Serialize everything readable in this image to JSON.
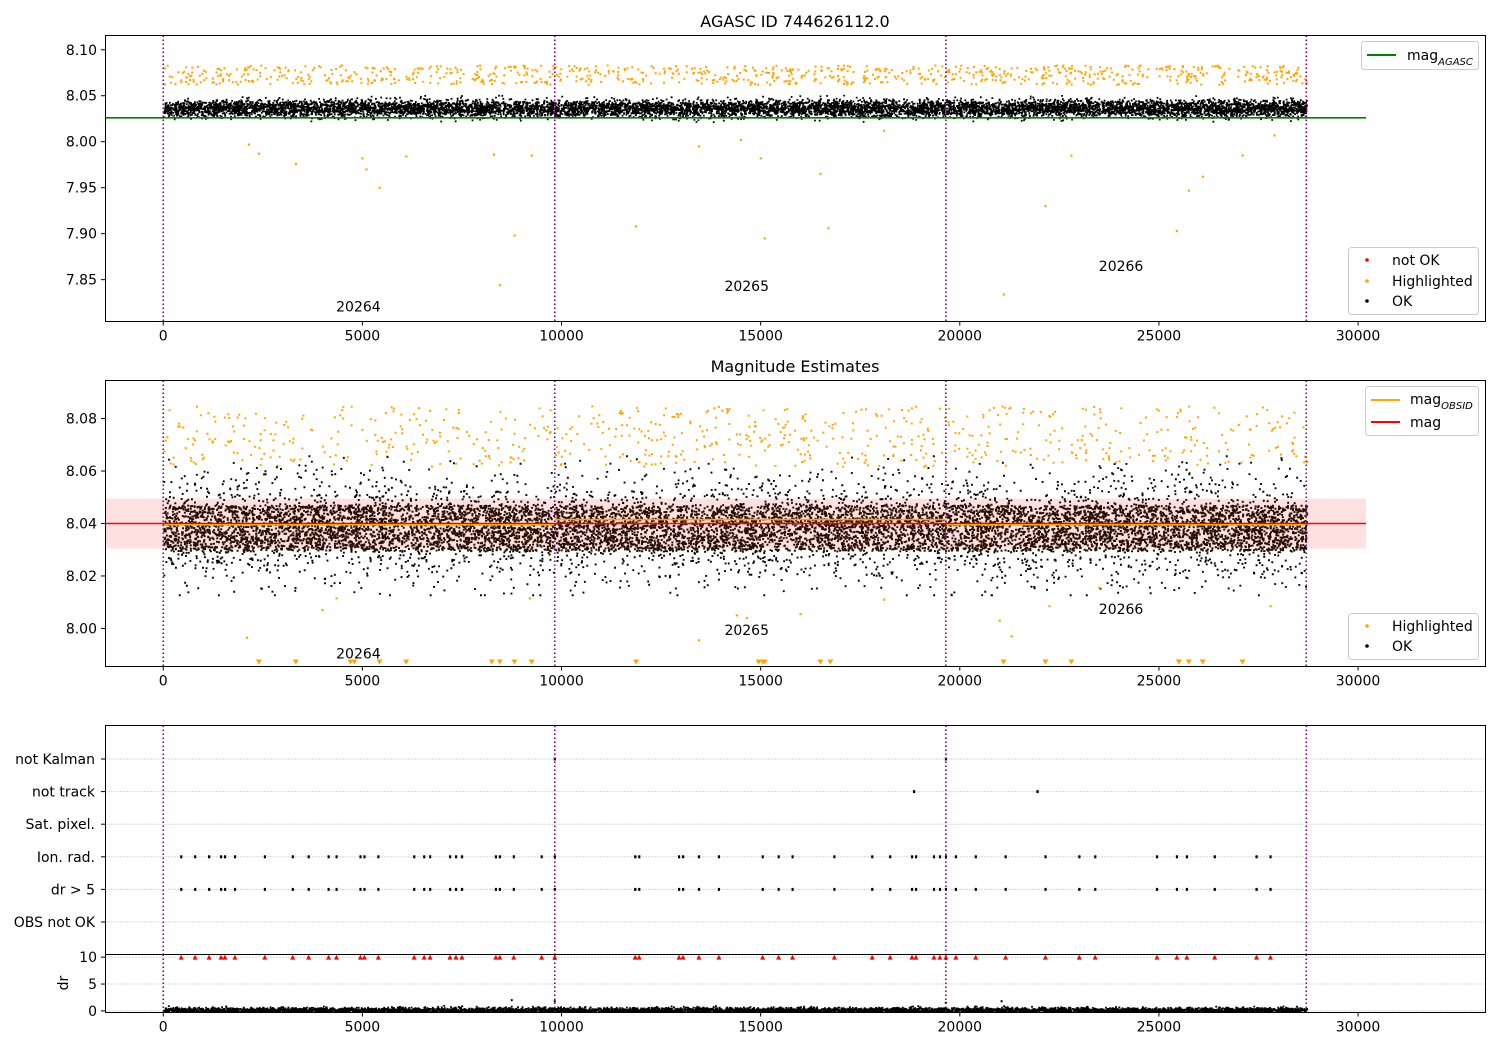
{
  "chart_data": [
    {
      "type": "scatter",
      "title": "AGASC ID 744626112.0",
      "xlim": [
        -1450,
        33200
      ],
      "ylim": [
        7.8045,
        8.1155
      ],
      "x_ticks": [
        0,
        5000,
        10000,
        15000,
        20000,
        25000,
        30000
      ],
      "x_tick_labels": [
        "0",
        "5000",
        "10000",
        "15000",
        "20000",
        "25000",
        "30000"
      ],
      "y_ticks": [
        7.85,
        7.9,
        7.95,
        8.0,
        8.05,
        8.1
      ],
      "y_tick_labels": [
        "7.85",
        "7.90",
        "7.95",
        "8.00",
        "8.05",
        "8.10"
      ],
      "obsid_boundaries": [
        0,
        9830,
        19650,
        28700
      ],
      "obsid_labels": [
        {
          "text": "20264",
          "x": 4900,
          "y": 7.8155
        },
        {
          "text": "20265",
          "x": 14650,
          "y": 7.8375
        },
        {
          "text": "20266",
          "x": 24050,
          "y": 7.8595
        }
      ],
      "reference_lines": [
        {
          "name": "mag",
          "subscript": "AGASC",
          "y": 8.026,
          "x_range": [
            -1450,
            30200
          ],
          "color": "#008000"
        }
      ],
      "series": [
        {
          "name": "OK",
          "color": "#000000",
          "x_range": [
            0,
            28700
          ],
          "center": 8.037,
          "spread": 0.0085
        },
        {
          "name": "Highlighted",
          "color": "#ffa500",
          "upper_band": [
            8.063,
            8.084
          ],
          "outliers": [
            [
              2150,
              7.997
            ],
            [
              2400,
              7.987
            ],
            [
              3330,
              7.976
            ],
            [
              5000,
              7.982
            ],
            [
              5100,
              7.97
            ],
            [
              5430,
              7.95
            ],
            [
              6100,
              7.984
            ],
            [
              8300,
              7.986
            ],
            [
              8450,
              7.844
            ],
            [
              8820,
              7.898
            ],
            [
              9250,
              7.985
            ],
            [
              11870,
              7.908
            ],
            [
              13450,
              7.995
            ],
            [
              14500,
              8.002
            ],
            [
              15000,
              7.982
            ],
            [
              15100,
              7.895
            ],
            [
              16500,
              7.965
            ],
            [
              16700,
              7.906
            ],
            [
              18100,
              8.012
            ],
            [
              21100,
              7.834
            ],
            [
              22150,
              7.93
            ],
            [
              22800,
              7.985
            ],
            [
              25450,
              7.903
            ],
            [
              25750,
              7.947
            ],
            [
              26100,
              7.962
            ],
            [
              27100,
              7.985
            ],
            [
              27900,
              8.007
            ]
          ]
        },
        {
          "name": "not OK",
          "color": "#ff0000",
          "count": 0
        }
      ],
      "legends": [
        {
          "position": "upper right",
          "entries": [
            "mag_AGASC"
          ]
        },
        {
          "position": "lower right",
          "entries": [
            "not OK",
            "Highlighted",
            "OK"
          ]
        }
      ]
    },
    {
      "type": "scatter",
      "title": "Magnitude Estimates",
      "xlim": [
        -1450,
        33200
      ],
      "ylim": [
        7.9855,
        8.0945
      ],
      "x_ticks": [
        0,
        5000,
        10000,
        15000,
        20000,
        25000,
        30000
      ],
      "x_tick_labels": [
        "0",
        "5000",
        "10000",
        "15000",
        "20000",
        "25000",
        "30000"
      ],
      "y_ticks": [
        8.0,
        8.02,
        8.04,
        8.06,
        8.08
      ],
      "y_tick_labels": [
        "8.00",
        "8.02",
        "8.04",
        "8.06",
        "8.08"
      ],
      "obsid_boundaries": [
        0,
        9830,
        19650,
        28700
      ],
      "obsid_labels": [
        {
          "text": "20264",
          "x": 4900,
          "y": 7.9885
        },
        {
          "text": "20265",
          "x": 14650,
          "y": 7.9975
        },
        {
          "text": "20266",
          "x": 24050,
          "y": 8.0055
        }
      ],
      "reference_lines": [
        {
          "name": "mag",
          "y": 8.04,
          "x_range": [
            -1450,
            30200
          ],
          "color": "#ff0000",
          "band": [
            8.0305,
            8.0495
          ]
        },
        {
          "name": "mag",
          "subscript": "OBSID",
          "color": "#ffa500",
          "segments": [
            [
              0,
              9830,
              8.0395
            ],
            [
              9830,
              19650,
              8.0415
            ],
            [
              19650,
              28700,
              8.0395
            ]
          ]
        }
      ],
      "series": [
        {
          "name": "OK",
          "color": "#000000",
          "x_range": [
            0,
            28700
          ],
          "center": 8.0385,
          "spread": 0.0075
        },
        {
          "name": "Highlighted",
          "color": "#ffa500",
          "upper_band": [
            8.062,
            8.085
          ],
          "below_axis_markers_x": [
            2400,
            3330,
            4700,
            4800,
            5430,
            6100,
            8250,
            8450,
            8820,
            9250,
            11870,
            14950,
            15050,
            15100,
            16500,
            16750,
            21100,
            22150,
            22800,
            25500,
            25750,
            26100,
            27100
          ],
          "outliers": [
            [
              2100,
              7.9965
            ],
            [
              4350,
              8.0115
            ],
            [
              4000,
              8.007
            ],
            [
              9200,
              8.0115
            ],
            [
              13450,
              7.9955
            ],
            [
              14400,
              8.005
            ],
            [
              14650,
              8.004
            ],
            [
              16000,
              8.0055
            ],
            [
              18100,
              8.011
            ],
            [
              21000,
              8.003
            ],
            [
              21300,
              7.997
            ],
            [
              22250,
              8.0085
            ],
            [
              23500,
              8.0155
            ],
            [
              27800,
              8.0085
            ]
          ]
        }
      ],
      "legends": [
        {
          "position": "upper right",
          "entries": [
            "mag_OBSID",
            "mag"
          ]
        },
        {
          "position": "lower right",
          "entries": [
            "Highlighted",
            "OK"
          ]
        }
      ]
    },
    {
      "type": "scatter",
      "title": "",
      "xlim": [
        -1450,
        33200
      ],
      "y_categories": [
        "not Kalman",
        "not track",
        "Sat. pixel.",
        "Ion. rad.",
        "dr > 5",
        "OBS not OK"
      ],
      "obsid_boundaries": [
        0,
        9830,
        19650,
        28700
      ],
      "flag_events": {
        "not Kalman": [
          9830,
          19650
        ],
        "not track": [
          18850,
          21950
        ],
        "Sat. pixel.": [],
        "Ion. rad.": [
          450,
          800,
          1150,
          1450,
          1550,
          1800,
          2550,
          3250,
          3650,
          4150,
          4350,
          4950,
          5050,
          5400,
          6300,
          6550,
          6700,
          7200,
          7350,
          7500,
          8350,
          8450,
          8800,
          9500,
          9830,
          11850,
          11950,
          12950,
          13050,
          13450,
          13950,
          15050,
          15450,
          15800,
          16850,
          17800,
          18250,
          18800,
          18900,
          19350,
          19500,
          19650,
          19900,
          20400,
          21150,
          22150,
          23000,
          23400,
          24950,
          25450,
          25700,
          26400,
          27450,
          27800
        ],
        "dr > 5": [
          450,
          800,
          1150,
          1450,
          1550,
          1800,
          2550,
          3250,
          3650,
          4150,
          4350,
          4950,
          5050,
          5400,
          6300,
          6550,
          6700,
          7200,
          7350,
          7500,
          8350,
          8450,
          8800,
          9500,
          9830,
          11850,
          11950,
          12950,
          13050,
          13450,
          13950,
          15050,
          15450,
          15800,
          16850,
          17800,
          18250,
          18800,
          18900,
          19350,
          19500,
          19650,
          19900,
          20400,
          21150,
          22150,
          23000,
          23400,
          24950,
          25450,
          25700,
          26400,
          27450,
          27800
        ],
        "OBS not OK": []
      }
    },
    {
      "type": "scatter",
      "title": "",
      "xlim": [
        -1450,
        33200
      ],
      "ylim": [
        -0.3,
        10.5
      ],
      "ylabel": "dr",
      "x_ticks": [
        0,
        5000,
        10000,
        15000,
        20000,
        25000,
        30000
      ],
      "x_tick_labels": [
        "0",
        "5000",
        "10000",
        "15000",
        "20000",
        "25000",
        "30000"
      ],
      "y_ticks": [
        0,
        5,
        10
      ],
      "y_tick_labels": [
        "0",
        "5",
        "10"
      ],
      "obsid_boundaries": [
        0,
        9830,
        19650,
        28700
      ],
      "series": [
        {
          "name": "dr",
          "color": "#000000",
          "x_range": [
            0,
            28700
          ],
          "typical_range": [
            0,
            1.0
          ],
          "spikes": [
            [
              8750,
              2.0
            ],
            [
              9830,
              1.8
            ],
            [
              21050,
              1.8
            ],
            [
              19650,
              1.5
            ]
          ]
        },
        {
          "name": "dr > 10 (clipped)",
          "color": "#ff0000",
          "marker": "triangle-up",
          "y": 10,
          "x": [
            450,
            800,
            1150,
            1450,
            1550,
            1800,
            2550,
            3250,
            3650,
            4150,
            4350,
            4950,
            5050,
            5400,
            6300,
            6550,
            6700,
            7200,
            7350,
            7500,
            8350,
            8450,
            8800,
            9500,
            9830,
            11850,
            11950,
            12950,
            13050,
            13450,
            13950,
            15050,
            15450,
            15800,
            16850,
            17800,
            18250,
            18800,
            18900,
            19350,
            19500,
            19650,
            19900,
            20400,
            21150,
            22150,
            23000,
            23400,
            24950,
            25450,
            25700,
            26400,
            27450,
            27800
          ]
        }
      ]
    }
  ],
  "figure_text": {
    "title1": "AGASC ID 744626112.0",
    "title2": "Magnitude Estimates",
    "legend1": {
      "mag_main": "mag",
      "mag_sub": "AGASC"
    },
    "legend1b": {
      "notok": "not OK",
      "highlighted": "Highlighted",
      "ok": "OK"
    },
    "legend2": {
      "mag_main": "mag",
      "mag_sub": "OBSID",
      "mag2": "mag"
    },
    "legend2b": {
      "highlighted": "Highlighted",
      "ok": "OK"
    },
    "dr_label": "dr"
  }
}
